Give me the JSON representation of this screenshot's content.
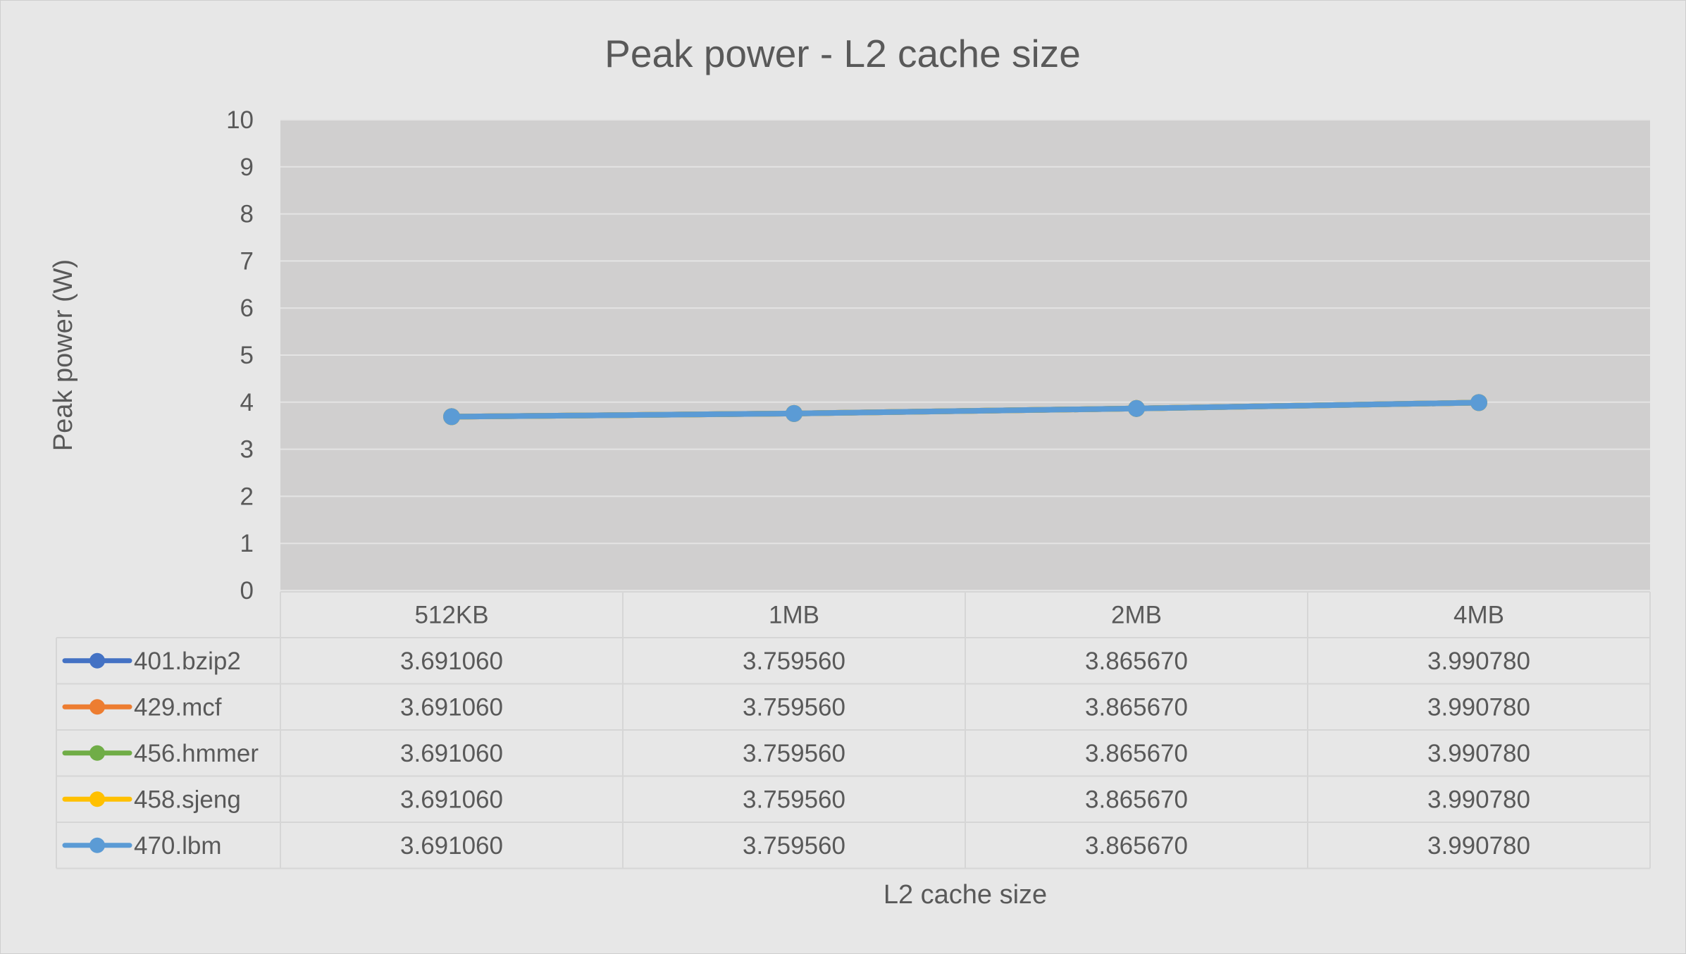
{
  "chart_data": {
    "type": "line",
    "title": "Peak power - L2 cache size",
    "xlabel": "L2 cache size",
    "ylabel": "Peak power (W)",
    "ylim": [
      0,
      10
    ],
    "yticks": [
      0,
      1,
      2,
      3,
      4,
      5,
      6,
      7,
      8,
      9,
      10
    ],
    "grid": true,
    "legend": "data-table",
    "categories": [
      "512KB",
      "1MB",
      "2MB",
      "4MB"
    ],
    "series": [
      {
        "name": "401.bzip2",
        "color": "#4472c4",
        "values": [
          3.69106,
          3.75956,
          3.86567,
          3.99078
        ],
        "labels": [
          "3.691060",
          "3.759560",
          "3.865670",
          "3.990780"
        ]
      },
      {
        "name": "429.mcf",
        "color": "#ed7d31",
        "values": [
          3.69106,
          3.75956,
          3.86567,
          3.99078
        ],
        "labels": [
          "3.691060",
          "3.759560",
          "3.865670",
          "3.990780"
        ]
      },
      {
        "name": "456.hmmer",
        "color": "#70ad47",
        "values": [
          3.69106,
          3.75956,
          3.86567,
          3.99078
        ],
        "labels": [
          "3.691060",
          "3.759560",
          "3.865670",
          "3.990780"
        ]
      },
      {
        "name": "458.sjeng",
        "color": "#ffc000",
        "values": [
          3.69106,
          3.75956,
          3.86567,
          3.99078
        ],
        "labels": [
          "3.691060",
          "3.759560",
          "3.865670",
          "3.990780"
        ]
      },
      {
        "name": "470.lbm",
        "color": "#5b9bd5",
        "values": [
          3.69106,
          3.75956,
          3.86567,
          3.99078
        ],
        "labels": [
          "3.691060",
          "3.759560",
          "3.865670",
          "3.990780"
        ]
      }
    ]
  }
}
